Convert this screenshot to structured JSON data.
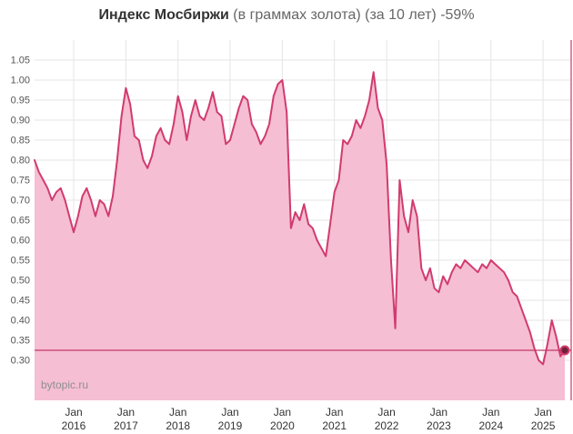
{
  "page": {
    "title_main": "Индекс Мосбиржи",
    "title_suffix": "(в граммах золота) (за 10 лет) -59%",
    "watermark": "bytopic.ru"
  },
  "chart_data": {
    "type": "area",
    "title": "Индекс Мосбиржи (в граммах золота) (за 10 лет) -59%",
    "ylabel": "",
    "xlabel": "",
    "x_start": "2015-04",
    "x_interval": "month",
    "values": [
      0.8,
      0.77,
      0.75,
      0.73,
      0.7,
      0.72,
      0.73,
      0.7,
      0.66,
      0.62,
      0.66,
      0.71,
      0.73,
      0.7,
      0.66,
      0.7,
      0.69,
      0.66,
      0.71,
      0.8,
      0.91,
      0.98,
      0.94,
      0.86,
      0.85,
      0.8,
      0.78,
      0.81,
      0.86,
      0.88,
      0.85,
      0.84,
      0.89,
      0.96,
      0.92,
      0.85,
      0.91,
      0.95,
      0.91,
      0.9,
      0.93,
      0.97,
      0.92,
      0.91,
      0.84,
      0.85,
      0.89,
      0.93,
      0.96,
      0.95,
      0.89,
      0.87,
      0.84,
      0.86,
      0.89,
      0.96,
      0.99,
      1.0,
      0.92,
      0.63,
      0.67,
      0.65,
      0.69,
      0.64,
      0.63,
      0.6,
      0.58,
      0.56,
      0.64,
      0.72,
      0.75,
      0.85,
      0.84,
      0.86,
      0.9,
      0.88,
      0.91,
      0.95,
      1.02,
      0.93,
      0.9,
      0.79,
      0.55,
      0.38,
      0.75,
      0.66,
      0.62,
      0.7,
      0.66,
      0.53,
      0.5,
      0.53,
      0.48,
      0.47,
      0.51,
      0.49,
      0.52,
      0.54,
      0.53,
      0.55,
      0.54,
      0.53,
      0.52,
      0.54,
      0.53,
      0.55,
      0.54,
      0.53,
      0.52,
      0.5,
      0.47,
      0.46,
      0.43,
      0.4,
      0.37,
      0.33,
      0.3,
      0.29,
      0.34,
      0.4,
      0.36,
      0.31,
      0.325
    ],
    "last_value": 0.325,
    "reference_line": 0.325,
    "change_label": "-59%",
    "y_ticks": [
      "0.30",
      "0.35",
      "0.40",
      "0.45",
      "0.50",
      "0.55",
      "0.60",
      "0.65",
      "0.70",
      "0.75",
      "0.80",
      "0.85",
      "0.90",
      "0.95",
      "1.00",
      "1.05"
    ],
    "x_ticks": [
      {
        "top": "Jan",
        "year": "2016",
        "month_index": 9
      },
      {
        "top": "Jan",
        "year": "2017",
        "month_index": 21
      },
      {
        "top": "Jan",
        "year": "2018",
        "month_index": 33
      },
      {
        "top": "Jan",
        "year": "2019",
        "month_index": 45
      },
      {
        "top": "Jan",
        "year": "2020",
        "month_index": 57
      },
      {
        "top": "Jan",
        "year": "2021",
        "month_index": 69
      },
      {
        "top": "Jan",
        "year": "2022",
        "month_index": 81
      },
      {
        "top": "Jan",
        "year": "2023",
        "month_index": 93
      },
      {
        "top": "Jan",
        "year": "2024",
        "month_index": 105
      },
      {
        "top": "Jan",
        "year": "2025",
        "month_index": 117
      }
    ],
    "plot_ylim": [
      0.2,
      1.1
    ],
    "grid": true,
    "legend": false,
    "colors": {
      "line": "#d13b6e",
      "fill": "#f5bed2",
      "grid": "#e5e5e5",
      "reference": "#c43868",
      "crosshair": "#c43868",
      "marker_fill": "#6e2238",
      "marker_ring": "#d13b6e",
      "background": "#ffffff"
    }
  }
}
